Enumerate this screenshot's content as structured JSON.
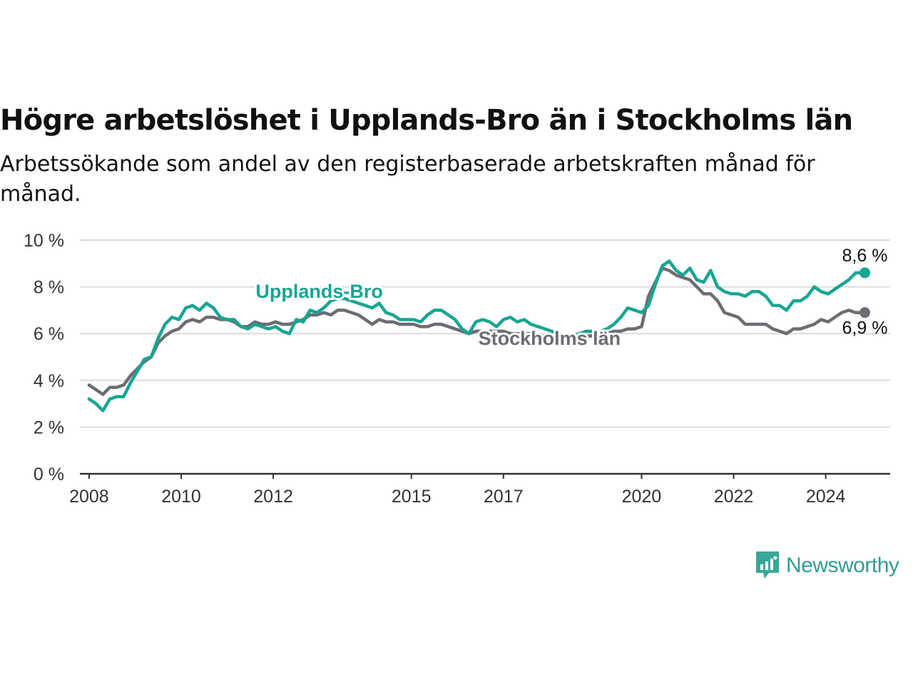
{
  "header": {
    "title": "Högre arbetslöshet i Upplands-Bro än i Stockholms län",
    "subtitle": "Arbetssökande som andel av den registerbaserade arbetskraften månad för månad."
  },
  "brand": {
    "name": "Newsworthy",
    "icon": "newsworthy-logo-icon",
    "color": "#3aa69b"
  },
  "colors": {
    "primary": "#18a594",
    "secondary": "#6d6c72",
    "grid": "#dcdcdc",
    "axis": "#333333"
  },
  "chart_data": {
    "type": "line",
    "title": "Högre arbetslöshet i Upplands-Bro än i Stockholms län",
    "subtitle": "Arbetssökande som andel av den registerbaserade arbetskraften månad för månad.",
    "xlabel": "",
    "ylabel": "",
    "xlim": [
      2007.8,
      2025.4
    ],
    "ylim": [
      0,
      10
    ],
    "grid": true,
    "legend": "inline labels",
    "x_ticks": [
      {
        "value": 2008,
        "label": "2008"
      },
      {
        "value": 2010,
        "label": "2010"
      },
      {
        "value": 2012,
        "label": "2012"
      },
      {
        "value": 2015,
        "label": "2015"
      },
      {
        "value": 2017,
        "label": "2017"
      },
      {
        "value": 2020,
        "label": "2020"
      },
      {
        "value": 2022,
        "label": "2022"
      },
      {
        "value": 2024,
        "label": "2024"
      }
    ],
    "y_ticks": [
      {
        "value": 0,
        "label": "0 %"
      },
      {
        "value": 2,
        "label": "2 %"
      },
      {
        "value": 4,
        "label": "4 %"
      },
      {
        "value": 6,
        "label": "6 %"
      },
      {
        "value": 8,
        "label": "8 %"
      },
      {
        "value": 10,
        "label": "10 %"
      }
    ],
    "series": [
      {
        "name": "Upplands-Bro",
        "color": "#18a594",
        "end_label": "8,6 %",
        "data": [
          [
            2008.0,
            3.2
          ],
          [
            2008.15,
            3.0
          ],
          [
            2008.3,
            2.7
          ],
          [
            2008.45,
            3.2
          ],
          [
            2008.6,
            3.3
          ],
          [
            2008.75,
            3.3
          ],
          [
            2008.9,
            3.9
          ],
          [
            2009.05,
            4.4
          ],
          [
            2009.2,
            4.9
          ],
          [
            2009.35,
            5.0
          ],
          [
            2009.5,
            5.8
          ],
          [
            2009.65,
            6.4
          ],
          [
            2009.8,
            6.7
          ],
          [
            2009.95,
            6.6
          ],
          [
            2010.1,
            7.1
          ],
          [
            2010.25,
            7.2
          ],
          [
            2010.4,
            7.0
          ],
          [
            2010.55,
            7.3
          ],
          [
            2010.7,
            7.1
          ],
          [
            2010.85,
            6.7
          ],
          [
            2011.0,
            6.6
          ],
          [
            2011.15,
            6.6
          ],
          [
            2011.3,
            6.3
          ],
          [
            2011.45,
            6.2
          ],
          [
            2011.6,
            6.4
          ],
          [
            2011.75,
            6.3
          ],
          [
            2011.9,
            6.2
          ],
          [
            2012.05,
            6.3
          ],
          [
            2012.2,
            6.1
          ],
          [
            2012.35,
            6.0
          ],
          [
            2012.5,
            6.6
          ],
          [
            2012.65,
            6.5
          ],
          [
            2012.8,
            7.0
          ],
          [
            2012.95,
            6.9
          ],
          [
            2013.1,
            7.1
          ],
          [
            2013.25,
            7.4
          ],
          [
            2013.4,
            7.5
          ],
          [
            2013.55,
            7.5
          ],
          [
            2013.7,
            7.4
          ],
          [
            2013.85,
            7.3
          ],
          [
            2014.0,
            7.2
          ],
          [
            2014.15,
            7.1
          ],
          [
            2014.3,
            7.3
          ],
          [
            2014.45,
            6.9
          ],
          [
            2014.6,
            6.8
          ],
          [
            2014.75,
            6.6
          ],
          [
            2014.9,
            6.6
          ],
          [
            2015.05,
            6.6
          ],
          [
            2015.2,
            6.5
          ],
          [
            2015.35,
            6.8
          ],
          [
            2015.5,
            7.0
          ],
          [
            2015.65,
            7.0
          ],
          [
            2015.8,
            6.8
          ],
          [
            2015.95,
            6.6
          ],
          [
            2016.1,
            6.2
          ],
          [
            2016.25,
            6.0
          ],
          [
            2016.4,
            6.5
          ],
          [
            2016.55,
            6.6
          ],
          [
            2016.7,
            6.5
          ],
          [
            2016.85,
            6.3
          ],
          [
            2017.0,
            6.6
          ],
          [
            2017.15,
            6.7
          ],
          [
            2017.3,
            6.5
          ],
          [
            2017.45,
            6.6
          ],
          [
            2017.6,
            6.4
          ],
          [
            2017.75,
            6.3
          ],
          [
            2017.9,
            6.2
          ],
          [
            2018.05,
            6.1
          ],
          [
            2018.2,
            6.0
          ],
          [
            2018.35,
            5.9
          ],
          [
            2018.5,
            5.9
          ],
          [
            2018.65,
            6.0
          ],
          [
            2018.8,
            6.1
          ],
          [
            2018.95,
            6.1
          ],
          [
            2019.1,
            6.1
          ],
          [
            2019.25,
            6.2
          ],
          [
            2019.4,
            6.4
          ],
          [
            2019.55,
            6.7
          ],
          [
            2019.7,
            7.1
          ],
          [
            2019.85,
            7.0
          ],
          [
            2020.0,
            6.9
          ],
          [
            2020.15,
            7.2
          ],
          [
            2020.3,
            8.1
          ],
          [
            2020.45,
            8.9
          ],
          [
            2020.6,
            9.1
          ],
          [
            2020.75,
            8.7
          ],
          [
            2020.9,
            8.5
          ],
          [
            2021.05,
            8.8
          ],
          [
            2021.2,
            8.3
          ],
          [
            2021.35,
            8.2
          ],
          [
            2021.5,
            8.7
          ],
          [
            2021.65,
            8.0
          ],
          [
            2021.8,
            7.8
          ],
          [
            2021.95,
            7.7
          ],
          [
            2022.1,
            7.7
          ],
          [
            2022.25,
            7.6
          ],
          [
            2022.4,
            7.8
          ],
          [
            2022.55,
            7.8
          ],
          [
            2022.7,
            7.6
          ],
          [
            2022.85,
            7.2
          ],
          [
            2023.0,
            7.2
          ],
          [
            2023.15,
            7.0
          ],
          [
            2023.3,
            7.4
          ],
          [
            2023.45,
            7.4
          ],
          [
            2023.6,
            7.6
          ],
          [
            2023.75,
            8.0
          ],
          [
            2023.9,
            7.8
          ],
          [
            2024.05,
            7.7
          ],
          [
            2024.2,
            7.9
          ],
          [
            2024.35,
            8.1
          ],
          [
            2024.5,
            8.3
          ],
          [
            2024.65,
            8.6
          ],
          [
            2024.85,
            8.6
          ]
        ]
      },
      {
        "name": "Stockholms län",
        "color": "#6d6c72",
        "end_label": "6,9 %",
        "data": [
          [
            2008.0,
            3.8
          ],
          [
            2008.15,
            3.6
          ],
          [
            2008.3,
            3.4
          ],
          [
            2008.45,
            3.7
          ],
          [
            2008.6,
            3.7
          ],
          [
            2008.75,
            3.8
          ],
          [
            2008.9,
            4.2
          ],
          [
            2009.05,
            4.5
          ],
          [
            2009.2,
            4.8
          ],
          [
            2009.35,
            5.0
          ],
          [
            2009.5,
            5.6
          ],
          [
            2009.65,
            5.9
          ],
          [
            2009.8,
            6.1
          ],
          [
            2009.95,
            6.2
          ],
          [
            2010.1,
            6.5
          ],
          [
            2010.25,
            6.6
          ],
          [
            2010.4,
            6.5
          ],
          [
            2010.55,
            6.7
          ],
          [
            2010.7,
            6.7
          ],
          [
            2010.85,
            6.6
          ],
          [
            2011.0,
            6.6
          ],
          [
            2011.15,
            6.5
          ],
          [
            2011.3,
            6.3
          ],
          [
            2011.45,
            6.3
          ],
          [
            2011.6,
            6.5
          ],
          [
            2011.75,
            6.4
          ],
          [
            2011.9,
            6.4
          ],
          [
            2012.05,
            6.5
          ],
          [
            2012.2,
            6.4
          ],
          [
            2012.35,
            6.4
          ],
          [
            2012.5,
            6.5
          ],
          [
            2012.65,
            6.6
          ],
          [
            2012.8,
            6.8
          ],
          [
            2012.95,
            6.8
          ],
          [
            2013.1,
            6.9
          ],
          [
            2013.25,
            6.8
          ],
          [
            2013.4,
            7.0
          ],
          [
            2013.55,
            7.0
          ],
          [
            2013.7,
            6.9
          ],
          [
            2013.85,
            6.8
          ],
          [
            2014.0,
            6.6
          ],
          [
            2014.15,
            6.4
          ],
          [
            2014.3,
            6.6
          ],
          [
            2014.45,
            6.5
          ],
          [
            2014.6,
            6.5
          ],
          [
            2014.75,
            6.4
          ],
          [
            2014.9,
            6.4
          ],
          [
            2015.05,
            6.4
          ],
          [
            2015.2,
            6.3
          ],
          [
            2015.35,
            6.3
          ],
          [
            2015.5,
            6.4
          ],
          [
            2015.65,
            6.4
          ],
          [
            2015.8,
            6.3
          ],
          [
            2015.95,
            6.2
          ],
          [
            2016.1,
            6.1
          ],
          [
            2016.25,
            6.0
          ],
          [
            2016.4,
            6.1
          ],
          [
            2016.55,
            6.1
          ],
          [
            2016.7,
            6.1
          ],
          [
            2016.85,
            6.1
          ],
          [
            2017.0,
            6.1
          ],
          [
            2017.15,
            6.0
          ],
          [
            2017.3,
            6.0
          ],
          [
            2017.45,
            6.0
          ],
          [
            2017.6,
            6.0
          ],
          [
            2017.75,
            5.9
          ],
          [
            2017.9,
            5.9
          ],
          [
            2018.05,
            5.9
          ],
          [
            2018.2,
            5.8
          ],
          [
            2018.35,
            5.8
          ],
          [
            2018.5,
            5.8
          ],
          [
            2018.65,
            5.9
          ],
          [
            2018.8,
            5.9
          ],
          [
            2018.95,
            5.9
          ],
          [
            2019.1,
            6.0
          ],
          [
            2019.25,
            6.0
          ],
          [
            2019.4,
            6.1
          ],
          [
            2019.55,
            6.1
          ],
          [
            2019.7,
            6.2
          ],
          [
            2019.85,
            6.2
          ],
          [
            2020.0,
            6.3
          ],
          [
            2020.15,
            7.6
          ],
          [
            2020.3,
            8.2
          ],
          [
            2020.45,
            8.8
          ],
          [
            2020.6,
            8.7
          ],
          [
            2020.75,
            8.5
          ],
          [
            2020.9,
            8.4
          ],
          [
            2021.05,
            8.3
          ],
          [
            2021.2,
            8.0
          ],
          [
            2021.35,
            7.7
          ],
          [
            2021.5,
            7.7
          ],
          [
            2021.65,
            7.4
          ],
          [
            2021.8,
            6.9
          ],
          [
            2021.95,
            6.8
          ],
          [
            2022.1,
            6.7
          ],
          [
            2022.25,
            6.4
          ],
          [
            2022.4,
            6.4
          ],
          [
            2022.55,
            6.4
          ],
          [
            2022.7,
            6.4
          ],
          [
            2022.85,
            6.2
          ],
          [
            2023.0,
            6.1
          ],
          [
            2023.15,
            6.0
          ],
          [
            2023.3,
            6.2
          ],
          [
            2023.45,
            6.2
          ],
          [
            2023.6,
            6.3
          ],
          [
            2023.75,
            6.4
          ],
          [
            2023.9,
            6.6
          ],
          [
            2024.05,
            6.5
          ],
          [
            2024.2,
            6.7
          ],
          [
            2024.35,
            6.9
          ],
          [
            2024.5,
            7.0
          ],
          [
            2024.65,
            6.9
          ],
          [
            2024.85,
            6.9
          ]
        ]
      }
    ],
    "annotations": [
      {
        "series": "Upplands-Bro",
        "text": "Upplands-Bro",
        "x": 2013.0,
        "y": 7.8
      },
      {
        "series": "Stockholms län",
        "text": "Stockholms län",
        "x": 2018.0,
        "y": 5.8
      }
    ]
  }
}
